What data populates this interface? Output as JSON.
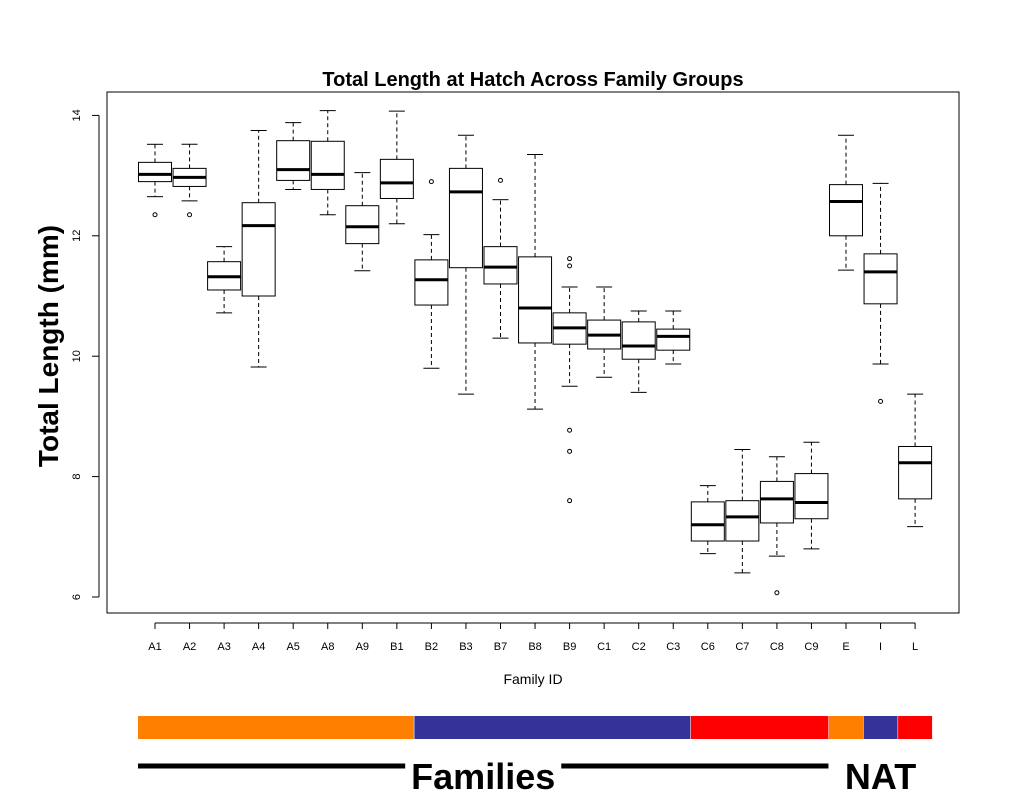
{
  "chart_data": {
    "type": "boxplot",
    "title": "Total Length at Hatch Across Family Groups",
    "xlabel": "Family ID",
    "ylabel": "Total Length (mm)",
    "ylim": [
      5.7,
      14.4
    ],
    "yticks": [
      6,
      8,
      10,
      12,
      14
    ],
    "grid": false,
    "categories": [
      "A1",
      "A2",
      "A3",
      "A4",
      "A5",
      "A8",
      "A9",
      "B1",
      "B2",
      "B3",
      "B7",
      "B8",
      "B9",
      "C1",
      "C2",
      "C3",
      "C6",
      "C7",
      "C8",
      "C9",
      "E",
      "I",
      "L"
    ],
    "boxes": [
      {
        "whisker_low": 12.65,
        "q1": 12.9,
        "median": 13.02,
        "q3": 13.22,
        "whisker_high": 13.52,
        "outliers": [
          12.35
        ]
      },
      {
        "whisker_low": 12.58,
        "q1": 12.82,
        "median": 12.97,
        "q3": 13.12,
        "whisker_high": 13.52,
        "outliers": [
          12.35
        ]
      },
      {
        "whisker_low": 10.72,
        "q1": 11.1,
        "median": 11.32,
        "q3": 11.57,
        "whisker_high": 11.82,
        "outliers": []
      },
      {
        "whisker_low": 9.82,
        "q1": 11.0,
        "median": 12.17,
        "q3": 12.55,
        "whisker_high": 13.75,
        "outliers": []
      },
      {
        "whisker_low": 12.77,
        "q1": 12.92,
        "median": 13.1,
        "q3": 13.58,
        "whisker_high": 13.88,
        "outliers": []
      },
      {
        "whisker_low": 12.35,
        "q1": 12.77,
        "median": 13.02,
        "q3": 13.57,
        "whisker_high": 14.08,
        "outliers": []
      },
      {
        "whisker_low": 11.42,
        "q1": 11.87,
        "median": 12.15,
        "q3": 12.5,
        "whisker_high": 13.05,
        "outliers": []
      },
      {
        "whisker_low": 12.2,
        "q1": 12.62,
        "median": 12.88,
        "q3": 13.27,
        "whisker_high": 14.07,
        "outliers": []
      },
      {
        "whisker_low": 9.8,
        "q1": 10.85,
        "median": 11.27,
        "q3": 11.6,
        "whisker_high": 12.02,
        "outliers": [
          12.9
        ]
      },
      {
        "whisker_low": 9.37,
        "q1": 11.47,
        "median": 12.73,
        "q3": 13.12,
        "whisker_high": 13.67,
        "outliers": []
      },
      {
        "whisker_low": 10.3,
        "q1": 11.2,
        "median": 11.48,
        "q3": 11.82,
        "whisker_high": 12.6,
        "outliers": [
          12.92
        ]
      },
      {
        "whisker_low": 9.12,
        "q1": 10.22,
        "median": 10.8,
        "q3": 11.65,
        "whisker_high": 13.35,
        "outliers": []
      },
      {
        "whisker_low": 9.5,
        "q1": 10.2,
        "median": 10.47,
        "q3": 10.72,
        "whisker_high": 11.15,
        "outliers": [
          11.5,
          11.62,
          8.77,
          8.42,
          7.6
        ]
      },
      {
        "whisker_low": 9.65,
        "q1": 10.12,
        "median": 10.35,
        "q3": 10.6,
        "whisker_high": 11.15,
        "outliers": []
      },
      {
        "whisker_low": 9.4,
        "q1": 9.95,
        "median": 10.17,
        "q3": 10.57,
        "whisker_high": 10.75,
        "outliers": []
      },
      {
        "whisker_low": 9.87,
        "q1": 10.1,
        "median": 10.33,
        "q3": 10.45,
        "whisker_high": 10.75,
        "outliers": []
      },
      {
        "whisker_low": 6.72,
        "q1": 6.93,
        "median": 7.2,
        "q3": 7.58,
        "whisker_high": 7.85,
        "outliers": []
      },
      {
        "whisker_low": 6.4,
        "q1": 6.93,
        "median": 7.33,
        "q3": 7.6,
        "whisker_high": 8.45,
        "outliers": []
      },
      {
        "whisker_low": 6.68,
        "q1": 7.23,
        "median": 7.63,
        "q3": 7.92,
        "whisker_high": 8.33,
        "outliers": [
          6.07
        ]
      },
      {
        "whisker_low": 6.8,
        "q1": 7.3,
        "median": 7.57,
        "q3": 8.05,
        "whisker_high": 8.57,
        "outliers": []
      },
      {
        "whisker_low": 11.43,
        "q1": 12.0,
        "median": 12.57,
        "q3": 12.85,
        "whisker_high": 13.67,
        "outliers": []
      },
      {
        "whisker_low": 9.87,
        "q1": 10.87,
        "median": 11.4,
        "q3": 11.7,
        "whisker_high": 12.87,
        "outliers": [
          9.25
        ]
      },
      {
        "whisker_low": 7.17,
        "q1": 7.63,
        "median": 8.23,
        "q3": 8.5,
        "whisker_high": 9.37,
        "outliers": []
      }
    ],
    "group_bars": [
      {
        "from": "A1",
        "to": "B1",
        "color": "#ff8000"
      },
      {
        "from": "B2",
        "to": "C3",
        "color": "#333399"
      },
      {
        "from": "C6",
        "to": "C9",
        "color": "#ff0000"
      },
      {
        "from": "E",
        "to": "E",
        "color": "#ff8000"
      },
      {
        "from": "I",
        "to": "I",
        "color": "#333399"
      },
      {
        "from": "L",
        "to": "L",
        "color": "#ff0000"
      }
    ],
    "group_labels": [
      {
        "text": "Families",
        "from": "A1",
        "to": "C9"
      },
      {
        "text": "NAT",
        "from": "E",
        "to": "L"
      }
    ]
  }
}
